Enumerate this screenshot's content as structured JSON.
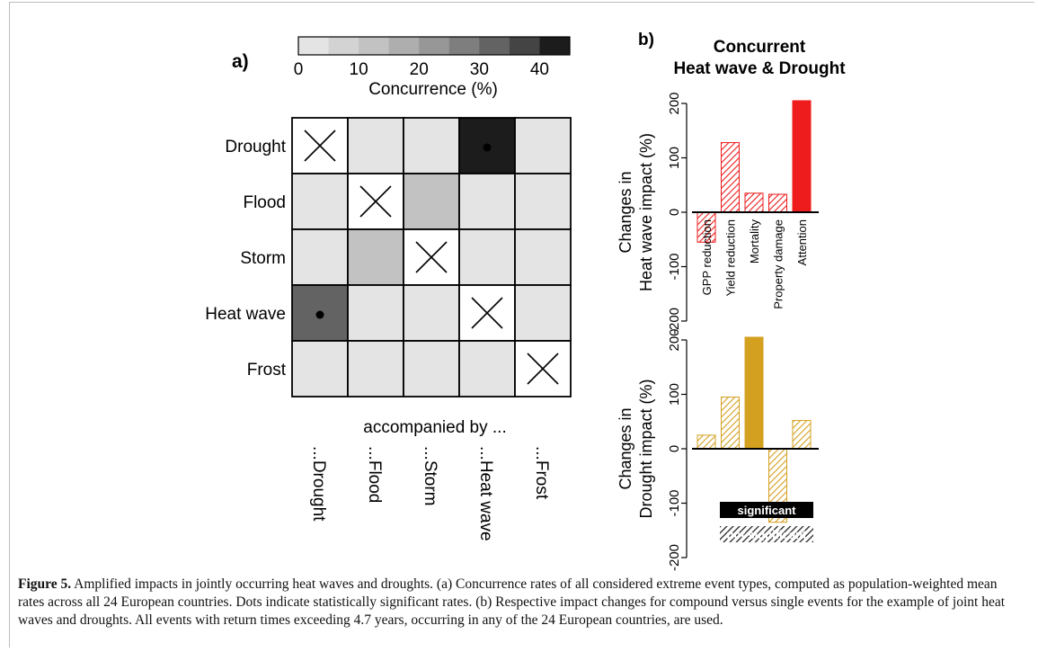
{
  "panel_a": {
    "panel_label": "a)",
    "colorbar": {
      "ticks": [
        "0",
        "10",
        "20",
        "30",
        "40"
      ],
      "label": "Concurrence (%)",
      "range": [
        0,
        45
      ],
      "steps": 9,
      "colors": [
        "#e4e4e4",
        "#d3d3d3",
        "#c2c2c2",
        "#aeaeae",
        "#979797",
        "#7e7e7e",
        "#636363",
        "#444444",
        "#1c1c1c"
      ]
    },
    "row_labels": [
      "Drought",
      "Flood",
      "Storm",
      "Heat wave",
      "Frost"
    ],
    "column_labels": [
      "...Drought",
      "...Flood",
      "...Storm",
      "...Heat wave",
      "...Frost"
    ],
    "column_axis_title": "accompanied by ...",
    "cells": [
      [
        {
          "v": null,
          "x": true
        },
        {
          "v": 2
        },
        {
          "v": 2
        },
        {
          "v": 43,
          "sig": true
        },
        {
          "v": 2
        }
      ],
      [
        {
          "v": 2
        },
        {
          "v": null,
          "x": true
        },
        {
          "v": 10
        },
        {
          "v": 2
        },
        {
          "v": 2
        }
      ],
      [
        {
          "v": 2
        },
        {
          "v": 10
        },
        {
          "v": null,
          "x": true
        },
        {
          "v": 2
        },
        {
          "v": 2
        }
      ],
      [
        {
          "v": 33,
          "sig": true
        },
        {
          "v": 2
        },
        {
          "v": 2
        },
        {
          "v": null,
          "x": true
        },
        {
          "v": 2
        }
      ],
      [
        {
          "v": 2
        },
        {
          "v": 2
        },
        {
          "v": 2
        },
        {
          "v": 2
        },
        {
          "v": null,
          "x": true
        }
      ]
    ]
  },
  "panel_b": {
    "panel_label": "b)",
    "title_line1": "Concurrent",
    "title_line2": "Heat wave & Drought",
    "top": {
      "ylabel_line1": "Changes in",
      "ylabel_line2": "Heat wave impact (%)",
      "ylim": [
        -200,
        200
      ],
      "yticks": [
        "-200",
        "-100",
        "0",
        "100",
        "200"
      ],
      "categories": [
        "GPP reduction",
        "Yield reduction",
        "Mortality",
        "Property damage",
        "Attention"
      ],
      "values": [
        -55,
        128,
        35,
        33,
        205
      ],
      "significant": [
        false,
        false,
        false,
        false,
        true
      ],
      "color": "#ee1c1c"
    },
    "bottom": {
      "ylabel_line1": "Changes in",
      "ylabel_line2": "Drought impact (%)",
      "ylim": [
        -200,
        200
      ],
      "yticks": [
        "-200",
        "-100",
        "0",
        "100",
        "200"
      ],
      "values": [
        25,
        95,
        205,
        -135,
        52
      ],
      "significant": [
        false,
        false,
        true,
        false,
        false
      ],
      "color": "#d4a020"
    },
    "legend": {
      "significant": "significant",
      "not_significant": "not significant"
    }
  },
  "caption": {
    "label": "Figure 5.",
    "text": " Amplified impacts in jointly occurring heat waves and droughts. (a) Concurrence rates of all considered extreme event types, computed as population-weighted mean rates across all 24 European countries. Dots indicate statistically significant rates. (b) Respective impact changes for compound versus single events for the example of joint heat waves and droughts. All events with return times exceeding 4.7 years, occurring in any of the 24 European countries, are used."
  }
}
